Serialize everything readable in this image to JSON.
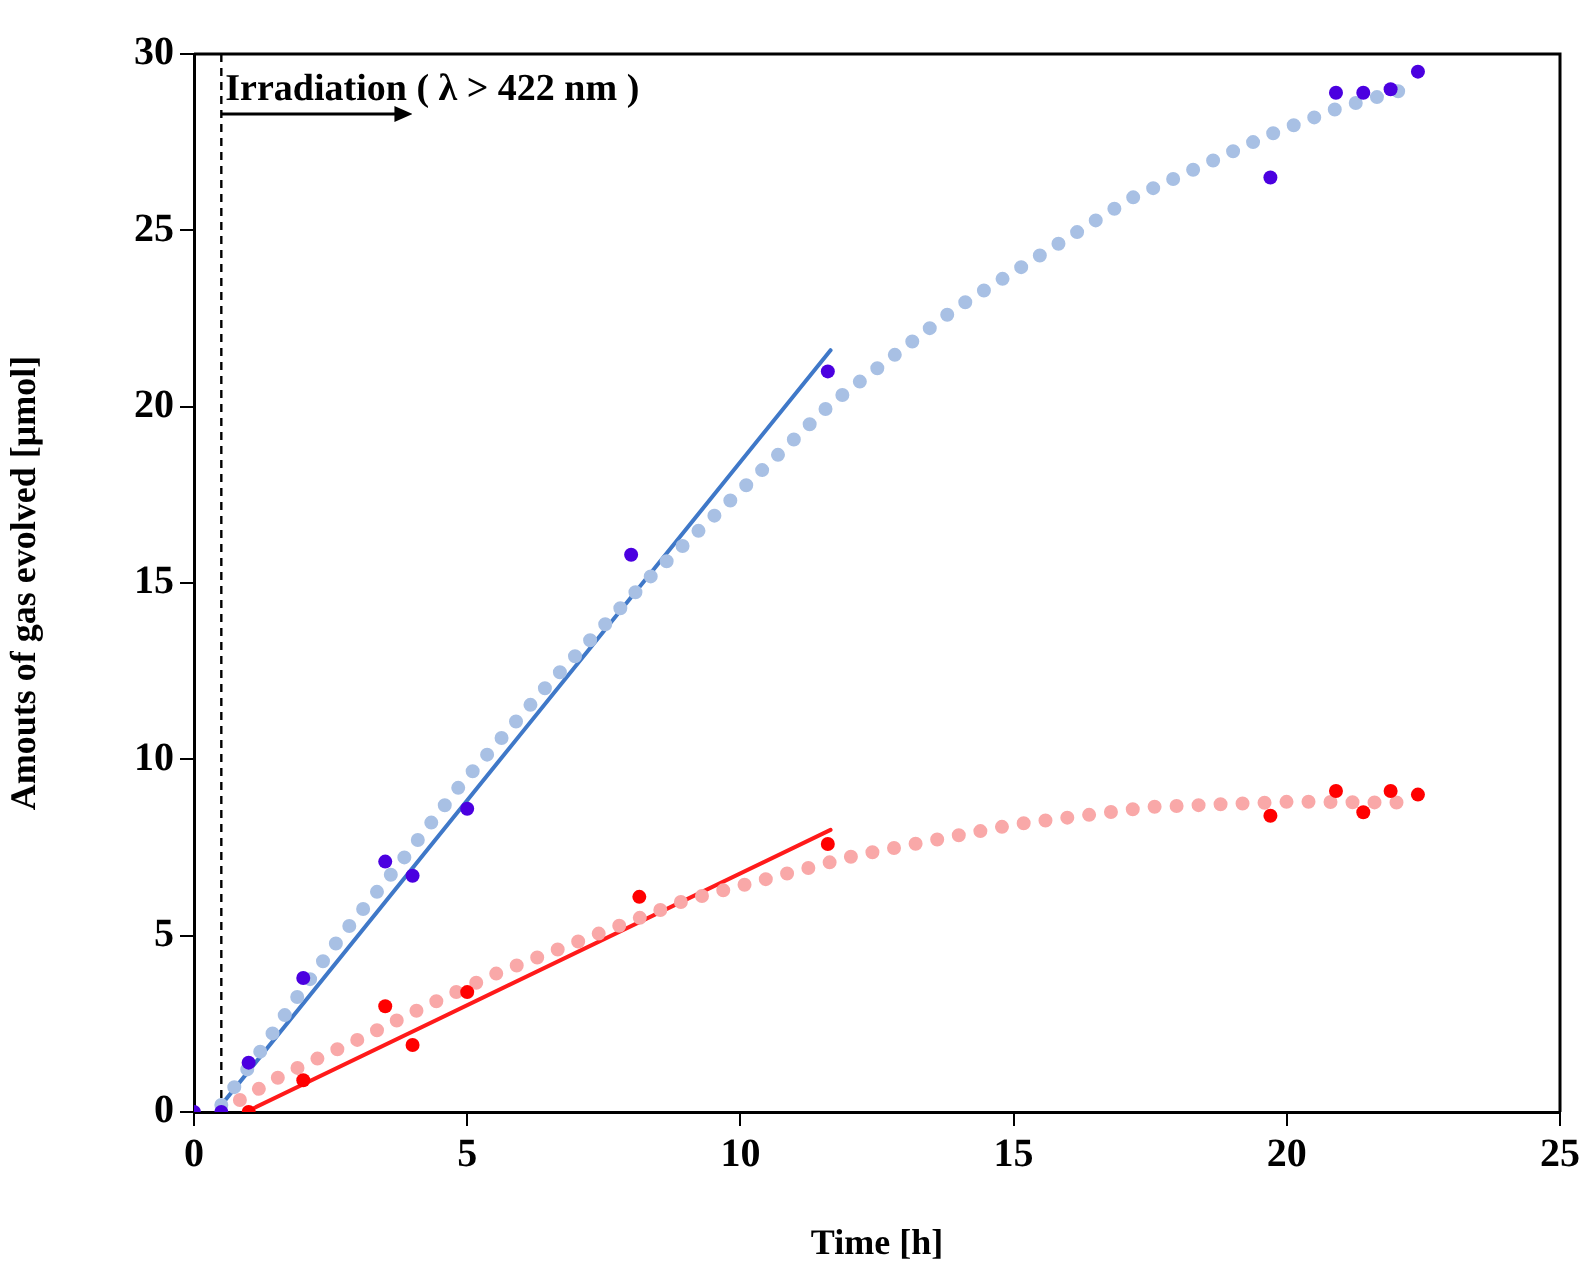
{
  "chart_data": {
    "type": "scatter",
    "xlabel": "Time [h]",
    "ylabel": "Amouts of gas evolved [μmol]",
    "xlim": [
      0,
      25
    ],
    "xticks": [
      0,
      5,
      10,
      15,
      20,
      25
    ],
    "ylim": [
      0,
      30
    ],
    "yticks": [
      0,
      5,
      10,
      15,
      20,
      25,
      30
    ],
    "grid": false,
    "legend": false,
    "annotations": [
      "Irradiation ( λ > 422 nm )"
    ],
    "ref_lines": [
      {
        "axis": "x",
        "value": 0.5,
        "color": "#000000",
        "line_style": "dashed"
      }
    ],
    "series": [
      {
        "type": "line",
        "line_style": "dotted",
        "marker": "none",
        "color": "#a8c0e4",
        "x": [
          0.5,
          1.23,
          1.8,
          2.7,
          3.64,
          4.84,
          6.47,
          8.3,
          10.33,
          11.67,
          13.95,
          17.14,
          19.66,
          21.0,
          22.4
        ],
        "values": [
          0.2,
          1.75,
          3.07,
          5.0,
          6.8,
          9.2,
          12.1,
          15.1,
          18.1,
          20.1,
          22.8,
          25.9,
          27.7,
          28.5,
          29.1
        ]
      },
      {
        "type": "line",
        "line_style": "dotted",
        "marker": "none",
        "color": "#f9a8a8",
        "x": [
          0.84,
          1.63,
          2.93,
          4.2,
          5.49,
          7.14,
          8.99,
          12.1,
          15.0,
          17.5,
          20.1,
          22.3
        ],
        "values": [
          0.34,
          1.06,
          2.0,
          2.97,
          3.9,
          4.9,
          6.0,
          7.27,
          8.15,
          8.65,
          8.8,
          8.77
        ]
      },
      {
        "type": "line",
        "line_style": "solid",
        "marker": "none",
        "color": "#3f78c8",
        "x": [
          0.5,
          11.65
        ],
        "values": [
          0.2,
          21.6
        ]
      },
      {
        "type": "line",
        "line_style": "solid",
        "marker": "none",
        "color": "#ff1a1a",
        "x": [
          0.95,
          11.65
        ],
        "values": [
          0,
          8.0
        ]
      },
      {
        "type": "scatter",
        "marker": "circle",
        "color": "#4b00e0",
        "x": [
          0,
          0.5,
          1.0,
          2.0,
          3.5,
          4.0,
          5.0,
          8.0,
          11.6,
          19.7,
          20.9,
          21.4,
          21.9,
          22.4
        ],
        "values": [
          0,
          0,
          1.4,
          3.8,
          7.1,
          6.7,
          8.6,
          15.8,
          21.0,
          26.5,
          28.9,
          28.9,
          29.0,
          29.5
        ]
      },
      {
        "type": "scatter",
        "marker": "circle",
        "color": "#ff0000",
        "x": [
          1.0,
          2.0,
          3.5,
          4.0,
          5.0,
          8.15,
          11.6,
          19.7,
          20.9,
          21.4,
          21.9,
          22.4
        ],
        "values": [
          0,
          0.9,
          3.0,
          1.9,
          3.4,
          6.1,
          7.6,
          8.4,
          9.1,
          8.5,
          9.1,
          9.0
        ]
      }
    ]
  }
}
